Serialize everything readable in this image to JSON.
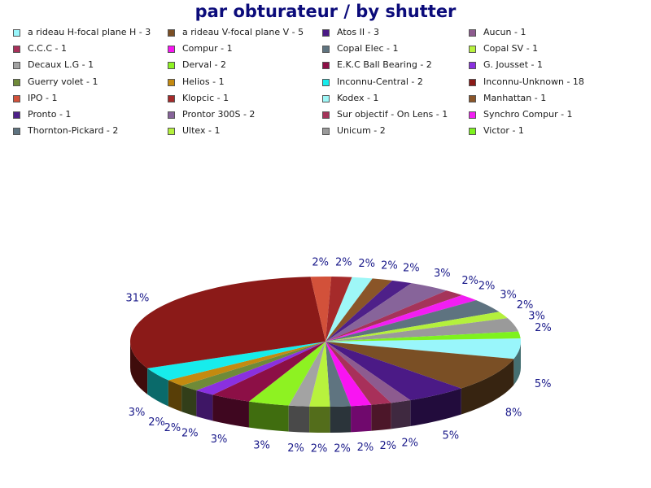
{
  "title": "par obturateur / by shutter",
  "chart_data": {
    "type": "pie",
    "style": "3d",
    "legend_position": "top",
    "slices": [
      {
        "label": "a rideau H-focal plane H - 3",
        "value": 3,
        "pct_label": "5%",
        "color": "#99f6fb"
      },
      {
        "label": "a rideau V-focal plane V - 5",
        "value": 5,
        "pct_label": "8%",
        "color": "#7a4f25"
      },
      {
        "label": "Atos II - 3",
        "value": 3,
        "pct_label": "5%",
        "color": "#4b1a86"
      },
      {
        "label": "Aucun - 1",
        "value": 1,
        "pct_label": "2%",
        "color": "#8d5b8f"
      },
      {
        "label": "C.C.C - 1",
        "value": 1,
        "pct_label": "2%",
        "color": "#a8305a"
      },
      {
        "label": "Compur - 1",
        "value": 1,
        "pct_label": "2%",
        "color": "#f914f2"
      },
      {
        "label": "Copal Elec - 1",
        "value": 1,
        "pct_label": "2%",
        "color": "#5f7480"
      },
      {
        "label": "Copal SV - 1",
        "value": 1,
        "pct_label": "2%",
        "color": "#b8f23d"
      },
      {
        "label": "Decaux L.G  - 1",
        "value": 1,
        "pct_label": "2%",
        "color": "#a3a3a3"
      },
      {
        "label": "Derval - 2",
        "value": 2,
        "pct_label": "3%",
        "color": "#8ef222"
      },
      {
        "label": "E.K.C Ball Bearing - 2",
        "value": 2,
        "pct_label": "3%",
        "color": "#8c0f46"
      },
      {
        "label": "G. Jousset - 1",
        "value": 1,
        "pct_label": "2%",
        "color": "#8a30e0"
      },
      {
        "label": "Guerry volet - 1",
        "value": 1,
        "pct_label": "2%",
        "color": "#6f8a38"
      },
      {
        "label": "Helios - 1",
        "value": 1,
        "pct_label": "2%",
        "color": "#c48a10"
      },
      {
        "label": "Inconnu-Central - 2",
        "value": 2,
        "pct_label": "3%",
        "color": "#17ecec"
      },
      {
        "label": "Inconnu-Unknown - 18",
        "value": 18,
        "pct_label": "31%",
        "color": "#8b1a18"
      },
      {
        "label": "IPO - 1",
        "value": 1,
        "pct_label": "2%",
        "color": "#d2513a"
      },
      {
        "label": "Klopcic - 1",
        "value": 1,
        "pct_label": "2%",
        "color": "#a52a2a"
      },
      {
        "label": "Kodex - 1",
        "value": 1,
        "pct_label": "2%",
        "color": "#9ef7f7"
      },
      {
        "label": "Manhattan - 1",
        "value": 1,
        "pct_label": "2%",
        "color": "#8a5528"
      },
      {
        "label": "Pronto - 1",
        "value": 1,
        "pct_label": "2%",
        "color": "#4e2089"
      },
      {
        "label": "Prontor 300S - 2",
        "value": 2,
        "pct_label": "3%",
        "color": "#87649a"
      },
      {
        "label": "Sur objectif - On Lens - 1",
        "value": 1,
        "pct_label": "2%",
        "color": "#a5345a"
      },
      {
        "label": "Synchro Compur - 1",
        "value": 1,
        "pct_label": "2%",
        "color": "#f21ef2"
      },
      {
        "label": "Thornton-Pickard - 2",
        "value": 2,
        "pct_label": "3%",
        "color": "#5e7380"
      },
      {
        "label": "Ultex - 1",
        "value": 1,
        "pct_label": "2%",
        "color": "#b4f03c"
      },
      {
        "label": "Unicum - 2",
        "value": 2,
        "pct_label": "3%",
        "color": "#9a9a9a"
      },
      {
        "label": "Victor - 1",
        "value": 1,
        "pct_label": "2%",
        "color": "#7ef21e"
      }
    ]
  }
}
